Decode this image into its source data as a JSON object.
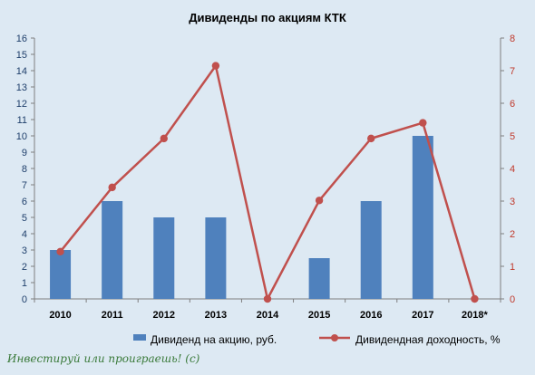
{
  "chart_data": {
    "type": "bar",
    "title": "Дивиденды по акциям КТК",
    "categories": [
      "2010",
      "2011",
      "2012",
      "2013",
      "2014",
      "2015",
      "2016",
      "2017",
      "2018*"
    ],
    "series": [
      {
        "name": "Дивиденд на акцию, руб.",
        "type": "bar",
        "axis": "left",
        "color": "#4f81bd",
        "values": [
          3,
          6,
          5,
          5,
          0,
          2.5,
          6,
          10,
          0
        ]
      },
      {
        "name": "Дивидендная доходность, %",
        "type": "line",
        "axis": "right",
        "color": "#c0504d",
        "values": [
          1.45,
          3.42,
          4.92,
          7.15,
          0,
          3.02,
          4.92,
          5.4,
          0
        ]
      }
    ],
    "yleft": {
      "min": 0,
      "max": 16,
      "step": 1
    },
    "yright": {
      "min": 0,
      "max": 8,
      "step": 1
    },
    "legend_position": "bottom",
    "grid": false,
    "watermark": "Инвестируй или проиграешь! (с)"
  }
}
